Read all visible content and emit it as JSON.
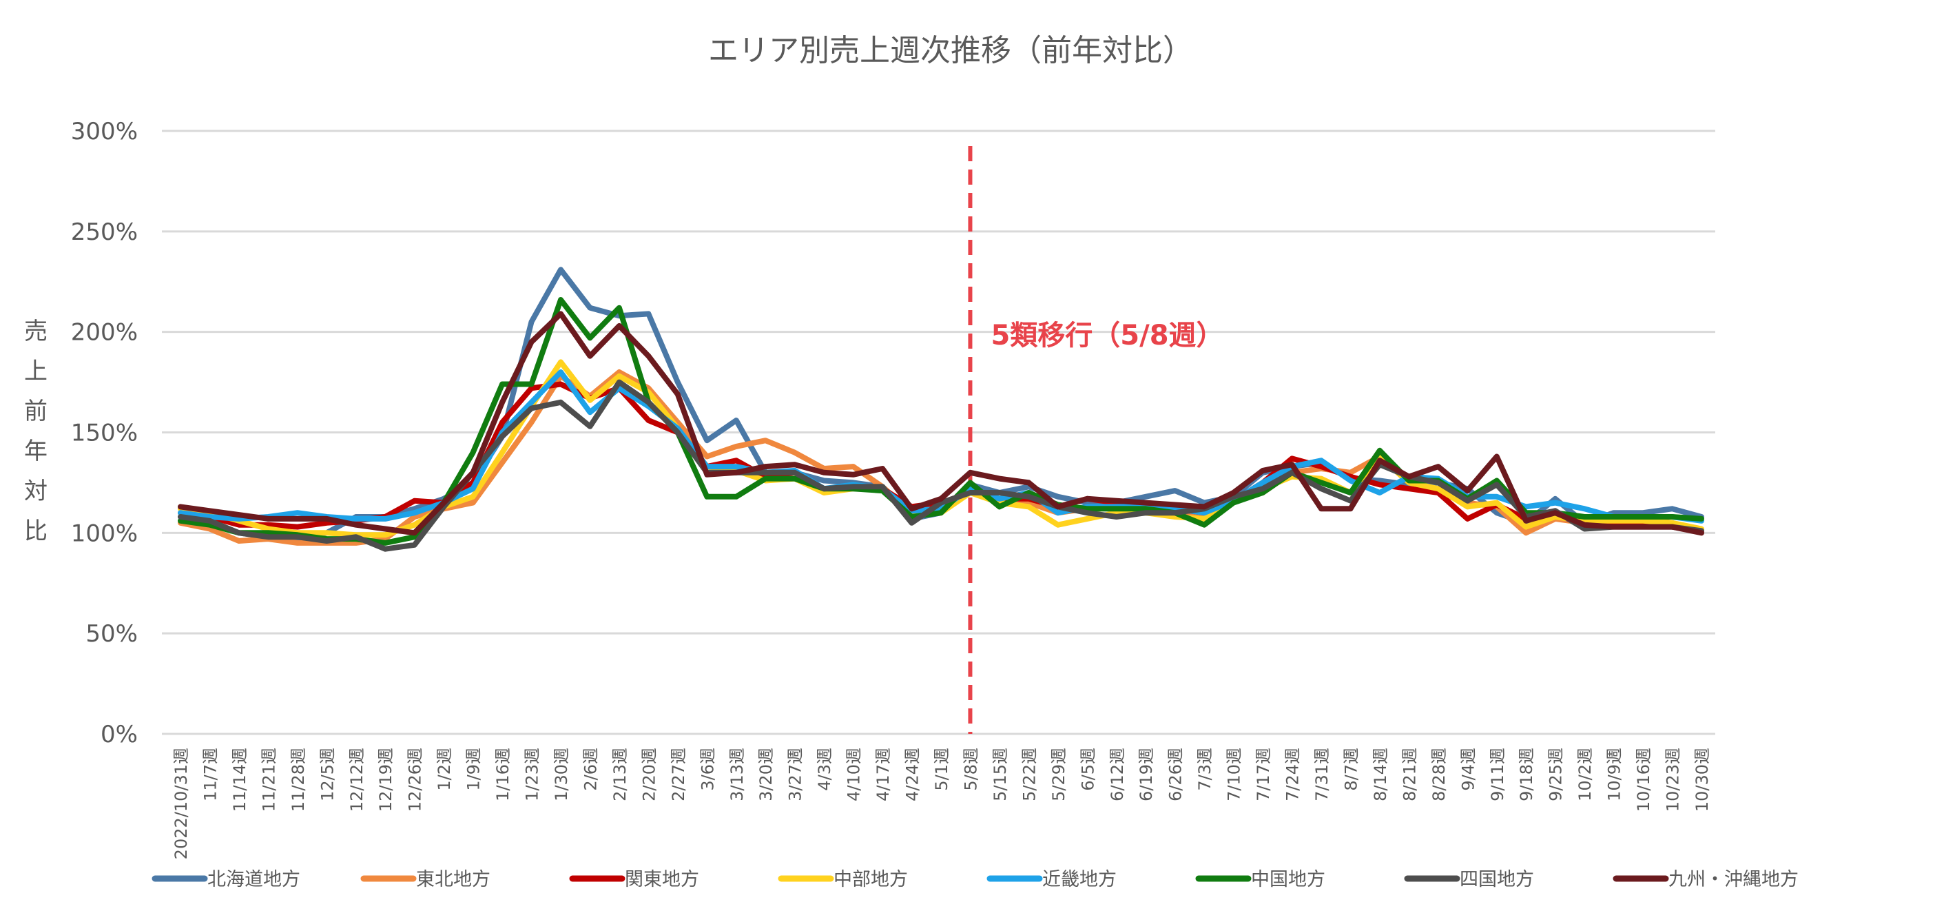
{
  "chart_data": {
    "type": "line",
    "title": "エリア別売上週次推移（前年対比）",
    "ylabel": "売上前年対比",
    "ylim": [
      0,
      300
    ],
    "yticks": [
      0,
      50,
      100,
      150,
      200,
      250,
      300
    ],
    "ytick_labels": [
      "0%",
      "50%",
      "100%",
      "150%",
      "200%",
      "250%",
      "300%"
    ],
    "grid": true,
    "legend": "bottom",
    "categories": [
      "2022/10/31週",
      "11/7週",
      "11/14週",
      "11/21週",
      "11/28週",
      "12/5週",
      "12/12週",
      "12/19週",
      "12/26週",
      "1/2週",
      "1/9週",
      "1/16週",
      "1/23週",
      "1/30週",
      "2/6週",
      "2/13週",
      "2/20週",
      "2/27週",
      "3/6週",
      "3/13週",
      "3/20週",
      "3/27週",
      "4/3週",
      "4/10週",
      "4/17週",
      "4/24週",
      "5/1週",
      "5/8週",
      "5/15週",
      "5/22週",
      "5/29週",
      "6/5週",
      "6/12週",
      "6/19週",
      "6/26週",
      "7/3週",
      "7/10週",
      "7/17週",
      "7/24週",
      "7/31週",
      "8/7週",
      "8/14週",
      "8/21週",
      "8/28週",
      "9/4週",
      "9/11週",
      "9/18週",
      "9/25週",
      "10/2週",
      "10/9週",
      "10/16週",
      "10/23週",
      "10/30週"
    ],
    "annotation": {
      "text": "5類移行（5/8週）",
      "category": "5/8週"
    },
    "series": [
      {
        "name": "北海道地方",
        "color": "#4a78a6",
        "values": [
          108,
          105,
          100,
          98,
          97,
          100,
          108,
          108,
          112,
          117,
          125,
          148,
          205,
          231,
          212,
          208,
          209,
          175,
          146,
          156,
          130,
          130,
          126,
          125,
          123,
          107,
          110,
          124,
          120,
          123,
          118,
          115,
          115,
          118,
          121,
          115,
          118,
          130,
          133,
          135,
          127,
          126,
          124,
          125,
          122,
          110,
          105,
          117,
          105,
          110,
          110,
          112,
          108
        ]
      },
      {
        "name": "東北地方",
        "color": "#f0883e",
        "values": [
          105,
          102,
          96,
          97,
          95,
          95,
          95,
          97,
          108,
          112,
          115,
          135,
          155,
          178,
          168,
          180,
          172,
          155,
          138,
          143,
          146,
          140,
          132,
          133,
          123,
          110,
          110,
          123,
          115,
          115,
          110,
          112,
          112,
          110,
          110,
          108,
          118,
          120,
          130,
          132,
          130,
          138,
          125,
          120,
          115,
          113,
          100,
          107,
          105,
          107,
          107,
          105,
          100
        ]
      },
      {
        "name": "関東地方",
        "color": "#c00000",
        "values": [
          110,
          108,
          104,
          104,
          103,
          105,
          106,
          108,
          116,
          115,
          125,
          155,
          172,
          174,
          167,
          172,
          156,
          150,
          133,
          136,
          128,
          130,
          122,
          123,
          122,
          113,
          115,
          120,
          117,
          117,
          113,
          117,
          115,
          113,
          112,
          110,
          116,
          125,
          137,
          133,
          128,
          124,
          122,
          120,
          107,
          114,
          107,
          110,
          103,
          105,
          105,
          103,
          101
        ]
      },
      {
        "name": "中部地方",
        "color": "#ffd21e",
        "values": [
          112,
          110,
          106,
          102,
          100,
          100,
          99,
          99,
          104,
          113,
          118,
          140,
          163,
          185,
          166,
          178,
          170,
          152,
          133,
          131,
          126,
          127,
          120,
          122,
          122,
          109,
          110,
          120,
          115,
          113,
          104,
          107,
          110,
          110,
          108,
          107,
          117,
          122,
          128,
          127,
          120,
          138,
          125,
          122,
          113,
          115,
          103,
          108,
          106,
          106,
          106,
          105,
          102
        ]
      },
      {
        "name": "近畿地方",
        "color": "#1ea2e8",
        "values": [
          110,
          108,
          107,
          108,
          110,
          108,
          107,
          107,
          110,
          115,
          122,
          150,
          165,
          180,
          160,
          172,
          163,
          152,
          133,
          133,
          130,
          131,
          122,
          124,
          122,
          111,
          112,
          122,
          117,
          120,
          110,
          113,
          113,
          113,
          112,
          110,
          116,
          125,
          133,
          136,
          126,
          120,
          128,
          127,
          118,
          118,
          113,
          115,
          112,
          108,
          108,
          108,
          106
        ]
      },
      {
        "name": "中国地方",
        "color": "#107c10",
        "values": [
          106,
          104,
          100,
          100,
          99,
          97,
          97,
          95,
          98,
          115,
          140,
          174,
          174,
          216,
          197,
          212,
          165,
          150,
          118,
          118,
          127,
          127,
          122,
          122,
          121,
          108,
          110,
          125,
          113,
          120,
          114,
          112,
          112,
          112,
          110,
          104,
          115,
          120,
          130,
          125,
          120,
          141,
          126,
          126,
          117,
          126,
          110,
          110,
          108,
          108,
          108,
          108,
          107
        ]
      },
      {
        "name": "四国地方",
        "color": "#4d4d4d",
        "values": [
          108,
          106,
          100,
          98,
          98,
          96,
          98,
          92,
          94,
          113,
          130,
          148,
          162,
          165,
          153,
          175,
          165,
          150,
          130,
          130,
          130,
          130,
          122,
          123,
          123,
          105,
          115,
          120,
          120,
          118,
          113,
          110,
          108,
          110,
          110,
          112,
          118,
          122,
          130,
          122,
          116,
          134,
          128,
          125,
          116,
          124,
          108,
          111,
          102,
          103,
          103,
          103,
          101
        ]
      },
      {
        "name": "九州・沖縄地方",
        "color": "#6b1a1e",
        "values": [
          113,
          111,
          109,
          107,
          107,
          107,
          104,
          102,
          100,
          115,
          130,
          165,
          195,
          209,
          188,
          203,
          188,
          169,
          129,
          130,
          133,
          134,
          130,
          129,
          132,
          112,
          117,
          130,
          127,
          125,
          113,
          117,
          116,
          115,
          114,
          113,
          120,
          131,
          134,
          112,
          112,
          136,
          128,
          133,
          121,
          138,
          106,
          110,
          104,
          103,
          103,
          103,
          100
        ]
      }
    ]
  }
}
